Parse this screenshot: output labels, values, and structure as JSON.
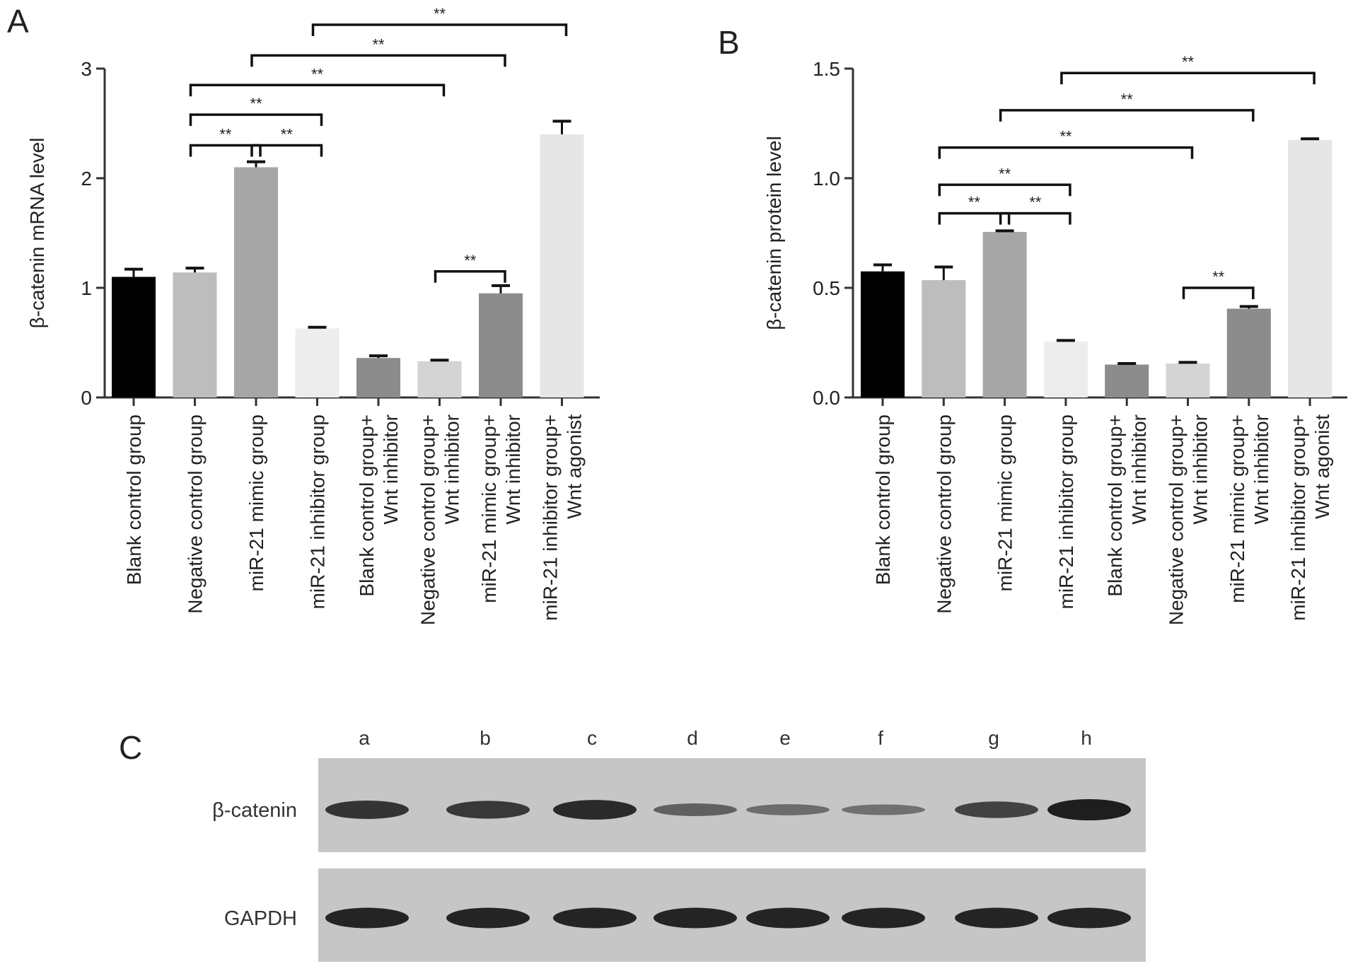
{
  "chart_data": [
    {
      "panel": "A",
      "type": "bar",
      "ylabel": "β-catenin mRNA level",
      "ylim": [
        0,
        3
      ],
      "yticks": [
        "0",
        "1",
        "2",
        "3"
      ],
      "categories": [
        [
          "Blank control group"
        ],
        [
          "Negative control group"
        ],
        [
          "miR-21 mimic group"
        ],
        [
          "miR-21 inhibitor group"
        ],
        [
          "Blank control group+",
          "Wnt inhibitor"
        ],
        [
          "Negative control group+",
          "Wnt inhibitor"
        ],
        [
          "miR-21 mimic group+",
          "Wnt inhibitor"
        ],
        [
          "miR-21 inhibitor group+",
          "Wnt agonist"
        ]
      ],
      "values": [
        1.1,
        1.14,
        2.1,
        0.63,
        0.36,
        0.33,
        0.95,
        2.4
      ],
      "errors": [
        0.07,
        0.04,
        0.05,
        0.01,
        0.02,
        0.01,
        0.07,
        0.12
      ],
      "colors": [
        "#000000",
        "#bdbdbd",
        "#a6a6a6",
        "#ededed",
        "#8c8c8c",
        "#d4d4d4",
        "#8c8c8c",
        "#e6e6e6"
      ],
      "significance": [
        {
          "from": 1,
          "to": 2,
          "y": 2.3,
          "label": "**"
        },
        {
          "from": 2,
          "to": 3,
          "y": 2.3,
          "label": "**"
        },
        {
          "from": 1,
          "to": 3,
          "y": 2.58,
          "label": "**"
        },
        {
          "from": 1,
          "to": 5,
          "y": 2.85,
          "label": "**"
        },
        {
          "from": 2,
          "to": 6,
          "y": 3.12,
          "label": "**"
        },
        {
          "from": 3,
          "to": 7,
          "y": 3.4,
          "label": "**"
        },
        {
          "from": 5,
          "to": 6,
          "y": 1.15,
          "label": "**"
        }
      ]
    },
    {
      "panel": "B",
      "type": "bar",
      "ylabel": "β-catenin protein level",
      "ylim": [
        0,
        1.5
      ],
      "yticks": [
        "0.0",
        "0.5",
        "1.0",
        "1.5"
      ],
      "categories": [
        [
          "Blank control group"
        ],
        [
          "Negative control group"
        ],
        [
          "miR-21 mimic group"
        ],
        [
          "miR-21 inhibitor group"
        ],
        [
          "Blank control group+",
          "Wnt inhibitor"
        ],
        [
          "Negative control group+",
          "Wnt inhibitor"
        ],
        [
          "miR-21 mimic group+",
          "Wnt inhibitor"
        ],
        [
          "miR-21 inhibitor group+",
          "Wnt agonist"
        ]
      ],
      "values": [
        0.575,
        0.535,
        0.755,
        0.255,
        0.15,
        0.155,
        0.405,
        1.175
      ],
      "errors": [
        0.03,
        0.06,
        0.005,
        0.005,
        0.005,
        0.005,
        0.01,
        0.005
      ],
      "colors": [
        "#000000",
        "#bdbdbd",
        "#a6a6a6",
        "#ededed",
        "#8c8c8c",
        "#d4d4d4",
        "#8c8c8c",
        "#e6e6e6"
      ],
      "significance": [
        {
          "from": 1,
          "to": 2,
          "y": 0.84,
          "label": "**"
        },
        {
          "from": 2,
          "to": 3,
          "y": 0.84,
          "label": "**"
        },
        {
          "from": 1,
          "to": 3,
          "y": 0.97,
          "label": "**"
        },
        {
          "from": 1,
          "to": 5,
          "y": 1.14,
          "label": "**"
        },
        {
          "from": 2,
          "to": 6,
          "y": 1.31,
          "label": "**"
        },
        {
          "from": 3,
          "to": 7,
          "y": 1.48,
          "label": "**"
        },
        {
          "from": 5,
          "to": 6,
          "y": 0.5,
          "label": "**"
        }
      ]
    }
  ],
  "blot": {
    "panel": "C",
    "lanes": [
      "a",
      "b",
      "c",
      "d",
      "e",
      "f",
      "g",
      "h"
    ],
    "rows": [
      {
        "label": "β-catenin",
        "intensities": [
          0.82,
          0.78,
          0.9,
          0.45,
          0.35,
          0.32,
          0.7,
          1.0
        ]
      },
      {
        "label": "GAPDH",
        "intensities": [
          0.95,
          0.95,
          0.95,
          0.95,
          0.95,
          0.95,
          0.95,
          0.95
        ]
      }
    ]
  }
}
